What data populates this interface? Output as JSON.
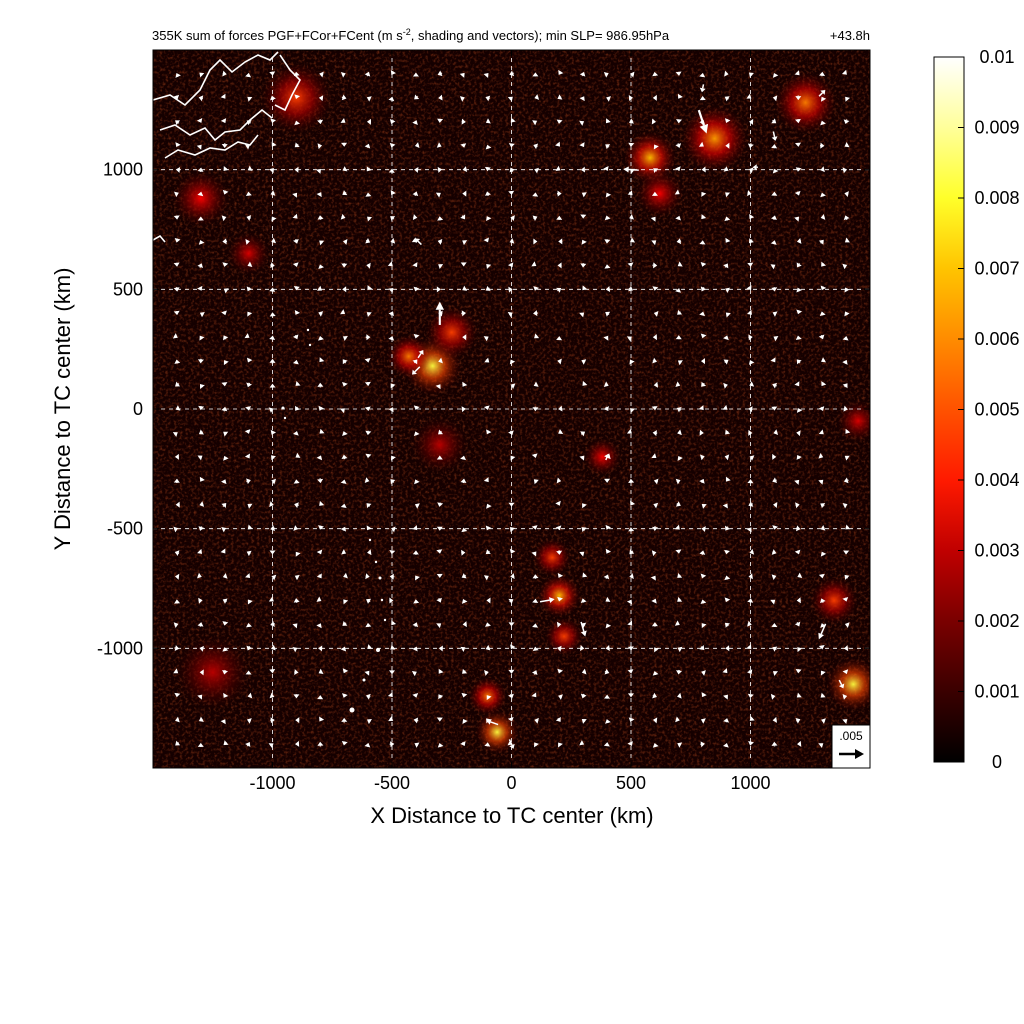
{
  "chart_data": {
    "type": "heatmap",
    "title": "355K sum of forces PGF+FCor+FCent (m s⁻², shading and vectors); min SLP= 986.95hPa",
    "title_parts": {
      "before": "355K sum of forces PGF+FCor+FCent (m s",
      "sup": "-2",
      "after": ", shading and vectors); min SLP= 986.95hPa"
    },
    "time_label": "+43.8h",
    "xlabel": "X Distance to TC center (km)",
    "ylabel": "Y Distance to TC center (km)",
    "xlim": [
      -1500,
      1500
    ],
    "ylim": [
      -1500,
      1500
    ],
    "x_ticks": [
      -1000,
      -500,
      0,
      500,
      1000
    ],
    "y_ticks": [
      -1000,
      -500,
      0,
      500,
      1000
    ],
    "x_tick_labels": [
      "-1000",
      "-500",
      "0",
      "500",
      "1000"
    ],
    "y_tick_labels": [
      "-1000",
      "-500",
      "0",
      "500",
      "1000"
    ],
    "grid": true,
    "colorbar": {
      "min": 0,
      "max": 0.01,
      "ticks": [
        0,
        0.001,
        0.002,
        0.003,
        0.004,
        0.005,
        0.006,
        0.007,
        0.008,
        0.009,
        0.01
      ],
      "tick_labels": [
        "0",
        "0.001",
        "0.002",
        "0.003",
        "0.004",
        "0.005",
        "0.006",
        "0.007",
        "0.008",
        "0.009",
        "0.01"
      ],
      "colormap": "hot",
      "colors": [
        "#000000",
        "#5a0000",
        "#b30000",
        "#ff2a00",
        "#ff8000",
        "#ffd000",
        "#ffff60",
        "#ffffff"
      ]
    },
    "reference_vector": {
      "label": ".005",
      "value": 0.005
    },
    "hotspots": [
      {
        "x": -330,
        "y": 180,
        "magnitude": 0.0085,
        "spread": 120
      },
      {
        "x": -430,
        "y": 220,
        "magnitude": 0.006,
        "spread": 90
      },
      {
        "x": -250,
        "y": 320,
        "magnitude": 0.005,
        "spread": 110
      },
      {
        "x": 580,
        "y": 1050,
        "magnitude": 0.007,
        "spread": 110
      },
      {
        "x": 850,
        "y": 1130,
        "magnitude": 0.0065,
        "spread": 140
      },
      {
        "x": 1230,
        "y": 1280,
        "magnitude": 0.006,
        "spread": 130
      },
      {
        "x": 620,
        "y": 900,
        "magnitude": 0.004,
        "spread": 100
      },
      {
        "x": 200,
        "y": -780,
        "magnitude": 0.007,
        "spread": 90
      },
      {
        "x": 170,
        "y": -620,
        "magnitude": 0.005,
        "spread": 80
      },
      {
        "x": 220,
        "y": -950,
        "magnitude": 0.005,
        "spread": 80
      },
      {
        "x": -60,
        "y": -1350,
        "magnitude": 0.0085,
        "spread": 90
      },
      {
        "x": -100,
        "y": -1200,
        "magnitude": 0.006,
        "spread": 80
      },
      {
        "x": 1430,
        "y": -1150,
        "magnitude": 0.0085,
        "spread": 110
      },
      {
        "x": 1350,
        "y": -800,
        "magnitude": 0.005,
        "spread": 100
      },
      {
        "x": -1300,
        "y": 880,
        "magnitude": 0.004,
        "spread": 120
      },
      {
        "x": -1100,
        "y": 650,
        "magnitude": 0.0035,
        "spread": 90
      },
      {
        "x": 380,
        "y": -200,
        "magnitude": 0.004,
        "spread": 80
      },
      {
        "x": -1250,
        "y": -1100,
        "magnitude": 0.003,
        "spread": 160
      },
      {
        "x": -300,
        "y": -150,
        "magnitude": 0.003,
        "spread": 120
      },
      {
        "x": 1450,
        "y": -50,
        "magnitude": 0.0035,
        "spread": 90
      },
      {
        "x": -900,
        "y": 1300,
        "magnitude": 0.005,
        "spread": 150
      }
    ],
    "vectors": [
      {
        "x": -300,
        "y": 400,
        "u": 0,
        "v": 0.0045
      },
      {
        "x": -400,
        "y": 160,
        "u": -0.0015,
        "v": -0.0015
      },
      {
        "x": -380,
        "y": 230,
        "u": 0.001,
        "v": 0.0015
      },
      {
        "x": -390,
        "y": 700,
        "u": -0.0012,
        "v": 0.0012
      },
      {
        "x": 800,
        "y": 1200,
        "u": 0.0015,
        "v": -0.0045
      },
      {
        "x": 500,
        "y": 1000,
        "u": -0.003,
        "v": 0.0002
      },
      {
        "x": 1100,
        "y": 1140,
        "u": 0.0004,
        "v": -0.0018
      },
      {
        "x": 1300,
        "y": 1320,
        "u": 0.0012,
        "v": 0.0012
      },
      {
        "x": 800,
        "y": 1340,
        "u": -0.0003,
        "v": -0.0015
      },
      {
        "x": 150,
        "y": -800,
        "u": 0.0028,
        "v": 0.0005
      },
      {
        "x": 300,
        "y": -920,
        "u": 0.0008,
        "v": -0.0028
      },
      {
        "x": 1300,
        "y": -930,
        "u": -0.0013,
        "v": -0.003
      },
      {
        "x": 1380,
        "y": -1150,
        "u": 0.0008,
        "v": -0.0016
      },
      {
        "x": -80,
        "y": -1310,
        "u": -0.0022,
        "v": 0.0008
      },
      {
        "x": 0,
        "y": -1400,
        "u": 0.0008,
        "v": -0.0018
      },
      {
        "x": 400,
        "y": -200,
        "u": 0.0005,
        "v": 0.0012
      },
      {
        "x": 1020,
        "y": 1010,
        "u": -0.001,
        "v": 0
      }
    ]
  }
}
